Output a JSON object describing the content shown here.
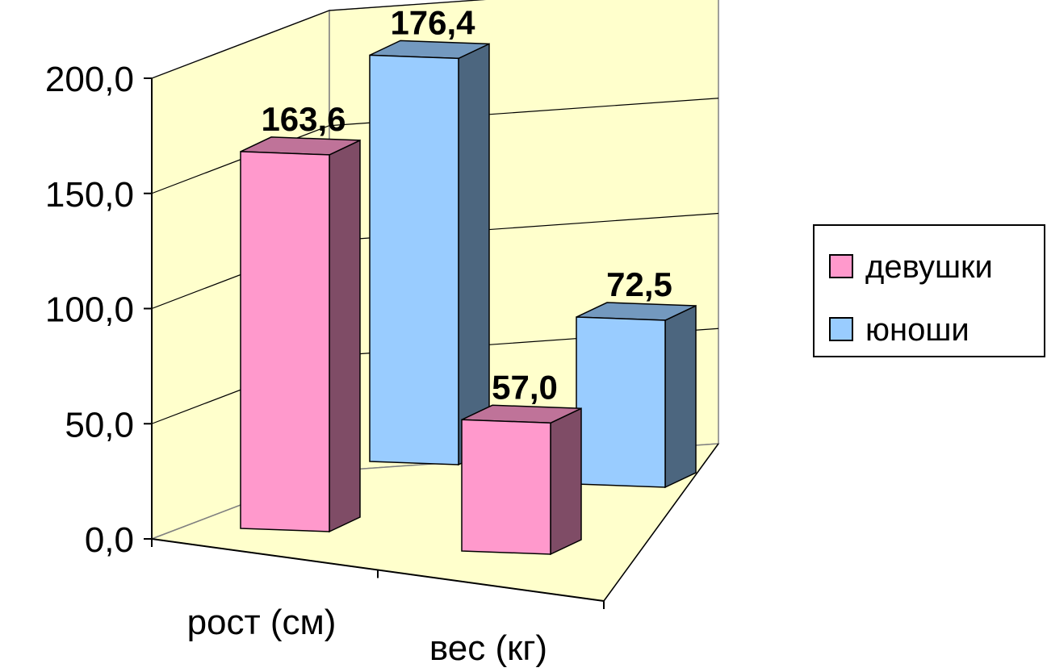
{
  "chart_data": {
    "type": "bar",
    "variant": "3d-clustered-column",
    "categories": [
      "рост (см)",
      "вес (кг)"
    ],
    "series": [
      {
        "name": "девушки",
        "values": [
          163.6,
          57.0
        ],
        "data_labels": [
          "163,6",
          "57,0"
        ],
        "color": "#ff99cc",
        "side_color": "#7f4c66",
        "top_color": "#bf7399"
      },
      {
        "name": "юноши",
        "values": [
          176.4,
          72.5
        ],
        "data_labels": [
          "176,4",
          "72,5"
        ],
        "color": "#99ccff",
        "side_color": "#4c667f",
        "top_color": "#7399bf"
      }
    ],
    "ylim": [
      0,
      200
    ],
    "y_ticks": [
      "0,0",
      "50,0",
      "100,0",
      "150,0",
      "200,0"
    ],
    "grid": true,
    "legend": "right",
    "wall_color": "#ffffcc"
  }
}
